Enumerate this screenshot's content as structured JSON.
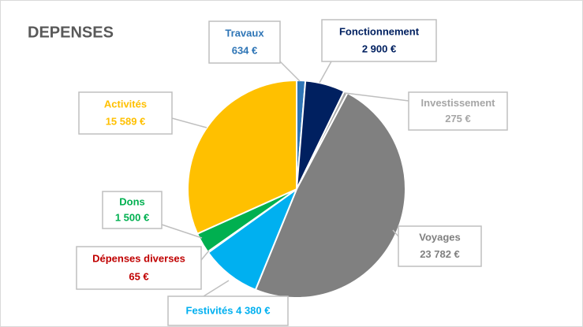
{
  "chart_data": {
    "type": "pie",
    "title": "DEPENSES",
    "categories": [
      "Travaux",
      "Fonctionnement",
      "Investissement",
      "Voyages",
      "Festivités",
      "Dépenses diverses",
      "Dons",
      "Activités"
    ],
    "values": [
      634,
      2900,
      275,
      23782,
      4380,
      65,
      1500,
      15589
    ],
    "value_labels": [
      "634 €",
      "2 900 €",
      "275 €",
      "23 782 €",
      "4 380 €",
      "65 €",
      "1 500 €",
      "15 589 €"
    ],
    "colors": [
      "#2e75b6",
      "#002060",
      "#a6a6a6",
      "#808080",
      "#00b0f0",
      "#c00000",
      "#00b050",
      "#ffc000"
    ]
  }
}
